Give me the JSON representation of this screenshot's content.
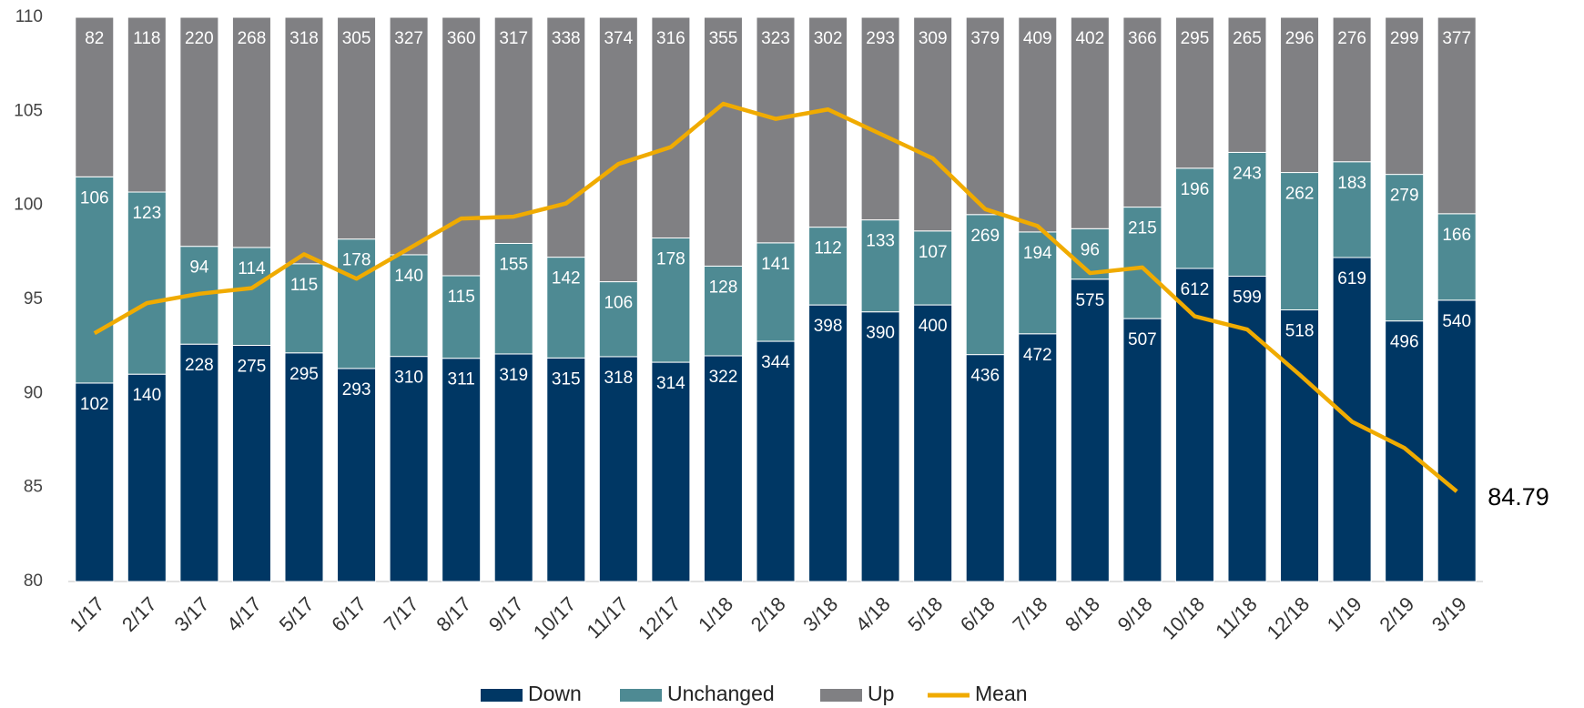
{
  "chart_data": {
    "type": "bar",
    "stacked": "percent",
    "categories": [
      "1/17",
      "2/17",
      "3/17",
      "4/17",
      "5/17",
      "6/17",
      "7/17",
      "8/17",
      "9/17",
      "10/17",
      "11/17",
      "12/17",
      "1/18",
      "2/18",
      "3/18",
      "4/18",
      "5/18",
      "6/18",
      "7/18",
      "8/18",
      "9/18",
      "10/18",
      "11/18",
      "12/18",
      "1/19",
      "2/19",
      "3/19"
    ],
    "series": [
      {
        "name": "Down",
        "color": "#003764",
        "values": [
          102,
          140,
          228,
          275,
          295,
          293,
          310,
          311,
          319,
          315,
          318,
          314,
          322,
          344,
          398,
          390,
          400,
          436,
          472,
          575,
          507,
          612,
          599,
          518,
          619,
          496,
          540
        ]
      },
      {
        "name": "Unchanged",
        "color": "#4e8a93",
        "values": [
          106,
          123,
          94,
          114,
          115,
          178,
          140,
          115,
          155,
          142,
          106,
          178,
          128,
          141,
          112,
          133,
          107,
          269,
          194,
          96,
          215,
          196,
          243,
          262,
          183,
          279,
          166
        ]
      },
      {
        "name": "Up",
        "color": "#808083",
        "values": [
          82,
          118,
          220,
          268,
          318,
          305,
          327,
          360,
          317,
          338,
          374,
          316,
          355,
          323,
          302,
          293,
          309,
          379,
          409,
          402,
          366,
          295,
          265,
          296,
          276,
          299,
          377
        ]
      },
      {
        "name": "Mean",
        "type": "line",
        "color": "#f0ab00",
        "values": [
          93.2,
          94.8,
          95.3,
          95.6,
          97.4,
          96.1,
          97.7,
          99.3,
          99.4,
          100.1,
          102.2,
          103.1,
          105.4,
          104.6,
          105.1,
          103.8,
          102.5,
          99.8,
          98.9,
          96.4,
          96.7,
          94.1,
          93.4,
          91.0,
          88.5,
          87.1,
          84.79
        ],
        "value_labels": [
          null,
          null,
          null,
          null,
          null,
          null,
          null,
          null,
          null,
          null,
          null,
          null,
          null,
          null,
          null,
          null,
          null,
          null,
          null,
          null,
          null,
          null,
          null,
          null,
          null,
          null,
          "84.79"
        ]
      }
    ],
    "ylim": [
      80,
      110
    ],
    "yticks": [
      80,
      85,
      90,
      95,
      100,
      105,
      110
    ],
    "legend": "bottom"
  }
}
